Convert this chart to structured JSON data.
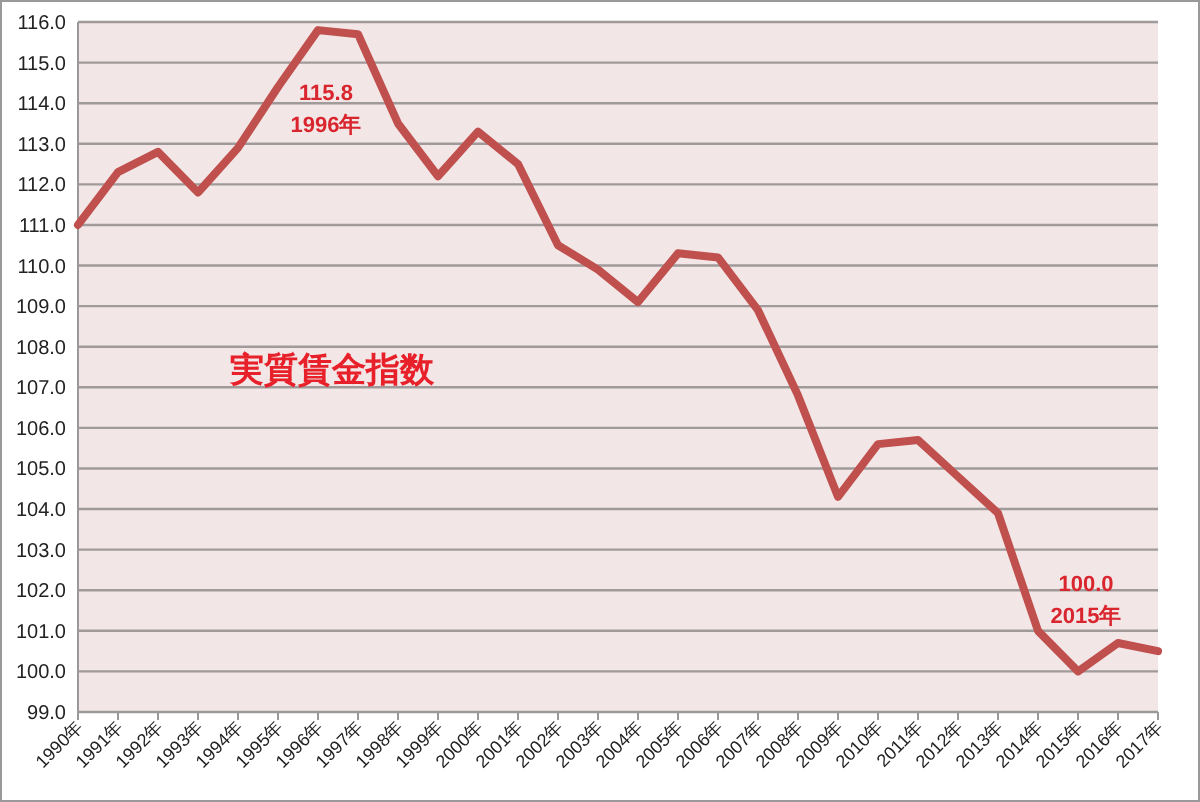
{
  "chart_data": {
    "type": "line",
    "title": "実質賃金指数",
    "categories": [
      "1990年",
      "1991年",
      "1992年",
      "1993年",
      "1994年",
      "1995年",
      "1996年",
      "1997年",
      "1998年",
      "1999年",
      "2000年",
      "2001年",
      "2002年",
      "2003年",
      "2004年",
      "2005年",
      "2006年",
      "2007年",
      "2008年",
      "2009年",
      "2010年",
      "2011年",
      "2012年",
      "2013年",
      "2014年",
      "2015年",
      "2016年",
      "2017年"
    ],
    "series": [
      {
        "color": "#c0504d",
        "values": [
          111.0,
          112.3,
          112.8,
          111.8,
          112.9,
          114.4,
          115.8,
          115.7,
          113.5,
          112.2,
          113.3,
          112.5,
          110.5,
          109.9,
          109.1,
          110.3,
          110.2,
          108.9,
          106.8,
          104.3,
          105.6,
          105.7,
          104.8,
          103.9,
          101.0,
          100.0,
          100.7,
          100.5
        ]
      }
    ],
    "ylim": [
      99,
      116
    ],
    "yticks": [
      {
        "value": 99,
        "label": "99.0"
      },
      {
        "value": 100,
        "label": "100.0"
      },
      {
        "value": 101,
        "label": "101.0"
      },
      {
        "value": 102,
        "label": "102.0"
      },
      {
        "value": 103,
        "label": "103.0"
      },
      {
        "value": 104,
        "label": "104.0"
      },
      {
        "value": 105,
        "label": "105.0"
      },
      {
        "value": 106,
        "label": "106.0"
      },
      {
        "value": 107,
        "label": "107.0"
      },
      {
        "value": 108,
        "label": "108.0"
      },
      {
        "value": 109,
        "label": "109.0"
      },
      {
        "value": 110,
        "label": "110.0"
      },
      {
        "value": 111,
        "label": "111.0"
      },
      {
        "value": 112,
        "label": "112.0"
      },
      {
        "value": 113,
        "label": "113.0"
      },
      {
        "value": 114,
        "label": "114.0"
      },
      {
        "value": 115,
        "label": "115.0"
      },
      {
        "value": 116,
        "label": "116.0"
      }
    ],
    "grid": "y",
    "marker": "none",
    "line_style": "solid",
    "annotations": [
      {
        "text": "115.8\n1996年",
        "x": "1996年",
        "y": 115.8
      },
      {
        "text": "100.0\n2015年",
        "x": "2015年",
        "y": 100.0
      }
    ]
  }
}
